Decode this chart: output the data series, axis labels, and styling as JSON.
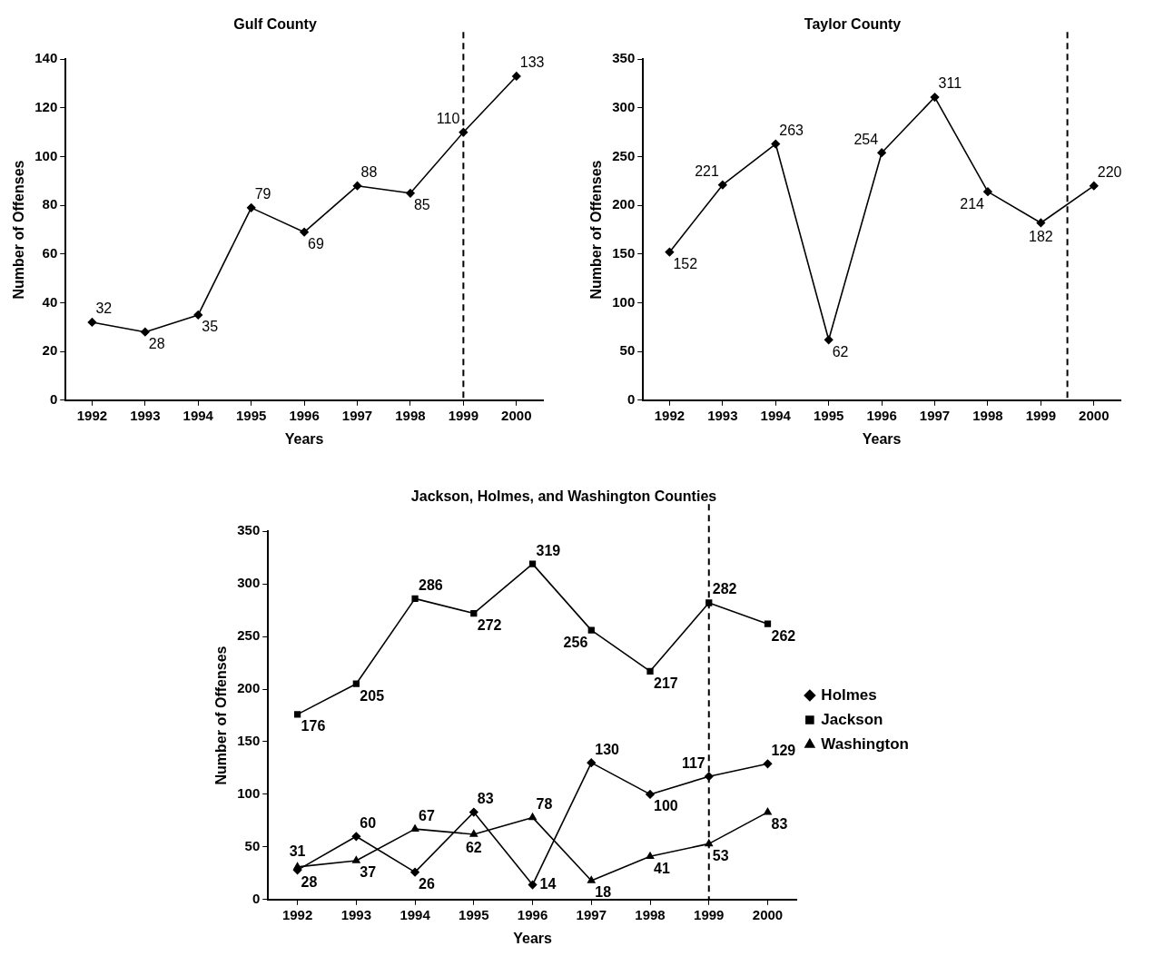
{
  "chart_data": [
    {
      "type": "line",
      "title": "Gulf County",
      "xlabel": "Years",
      "ylabel": "Number of Offenses",
      "x": [
        1992,
        1993,
        1994,
        1995,
        1996,
        1997,
        1998,
        1999,
        2000
      ],
      "xlim": [
        1991.5,
        2000.5
      ],
      "xticks": [
        1992,
        1993,
        1994,
        1995,
        1996,
        1997,
        1998,
        1999,
        2000
      ],
      "ylim": [
        0,
        140
      ],
      "yticks": [
        0,
        20,
        40,
        60,
        80,
        100,
        120,
        140
      ],
      "grid": false,
      "legend": false,
      "marker": "diamond",
      "data_labels": true,
      "series": [
        {
          "color": "#000000",
          "values": [
            32,
            28,
            35,
            79,
            69,
            88,
            85,
            110,
            133
          ]
        }
      ],
      "ref_lines": [
        {
          "axis": "x",
          "value": 1999,
          "line_style": "dashed",
          "color": "#000000"
        }
      ]
    },
    {
      "type": "line",
      "title": "Taylor County",
      "xlabel": "Years",
      "ylabel": "Number of Offenses",
      "x": [
        1992,
        1993,
        1994,
        1995,
        1996,
        1997,
        1998,
        1999,
        2000
      ],
      "xlim": [
        1991.5,
        2000.5
      ],
      "xticks": [
        1992,
        1993,
        1994,
        1995,
        1996,
        1997,
        1998,
        1999,
        2000
      ],
      "ylim": [
        0,
        350
      ],
      "yticks": [
        0,
        50,
        100,
        150,
        200,
        250,
        300,
        350
      ],
      "grid": false,
      "legend": false,
      "marker": "diamond",
      "data_labels": true,
      "series": [
        {
          "color": "#000000",
          "values": [
            152,
            221,
            263,
            62,
            254,
            311,
            214,
            182,
            220
          ]
        }
      ],
      "ref_lines": [
        {
          "axis": "x",
          "value": 1999.5,
          "line_style": "dashed",
          "color": "#000000"
        }
      ]
    },
    {
      "type": "line",
      "title": "Jackson, Holmes, and Washington Counties",
      "xlabel": "Years",
      "ylabel": "Number of Offenses",
      "x": [
        1992,
        1993,
        1994,
        1995,
        1996,
        1997,
        1998,
        1999,
        2000
      ],
      "xlim": [
        1991.5,
        2000.5
      ],
      "xticks": [
        1992,
        1993,
        1994,
        1995,
        1996,
        1997,
        1998,
        1999,
        2000
      ],
      "ylim": [
        0,
        350
      ],
      "yticks": [
        0,
        50,
        100,
        150,
        200,
        250,
        300,
        350
      ],
      "grid": false,
      "legend": "right",
      "data_labels": true,
      "series": [
        {
          "name": "Holmes",
          "color": "#000000",
          "marker": "diamond",
          "values": [
            28,
            60,
            26,
            83,
            14,
            130,
            100,
            117,
            129
          ]
        },
        {
          "name": "Jackson",
          "color": "#000000",
          "marker": "square",
          "values": [
            176,
            205,
            286,
            272,
            319,
            256,
            217,
            282,
            262
          ]
        },
        {
          "name": "Washington",
          "color": "#000000",
          "marker": "triangle",
          "values": [
            31,
            37,
            67,
            62,
            78,
            18,
            41,
            53,
            83
          ]
        }
      ],
      "ref_lines": [
        {
          "axis": "x",
          "value": 1999,
          "line_style": "dashed",
          "color": "#000000"
        }
      ]
    }
  ]
}
